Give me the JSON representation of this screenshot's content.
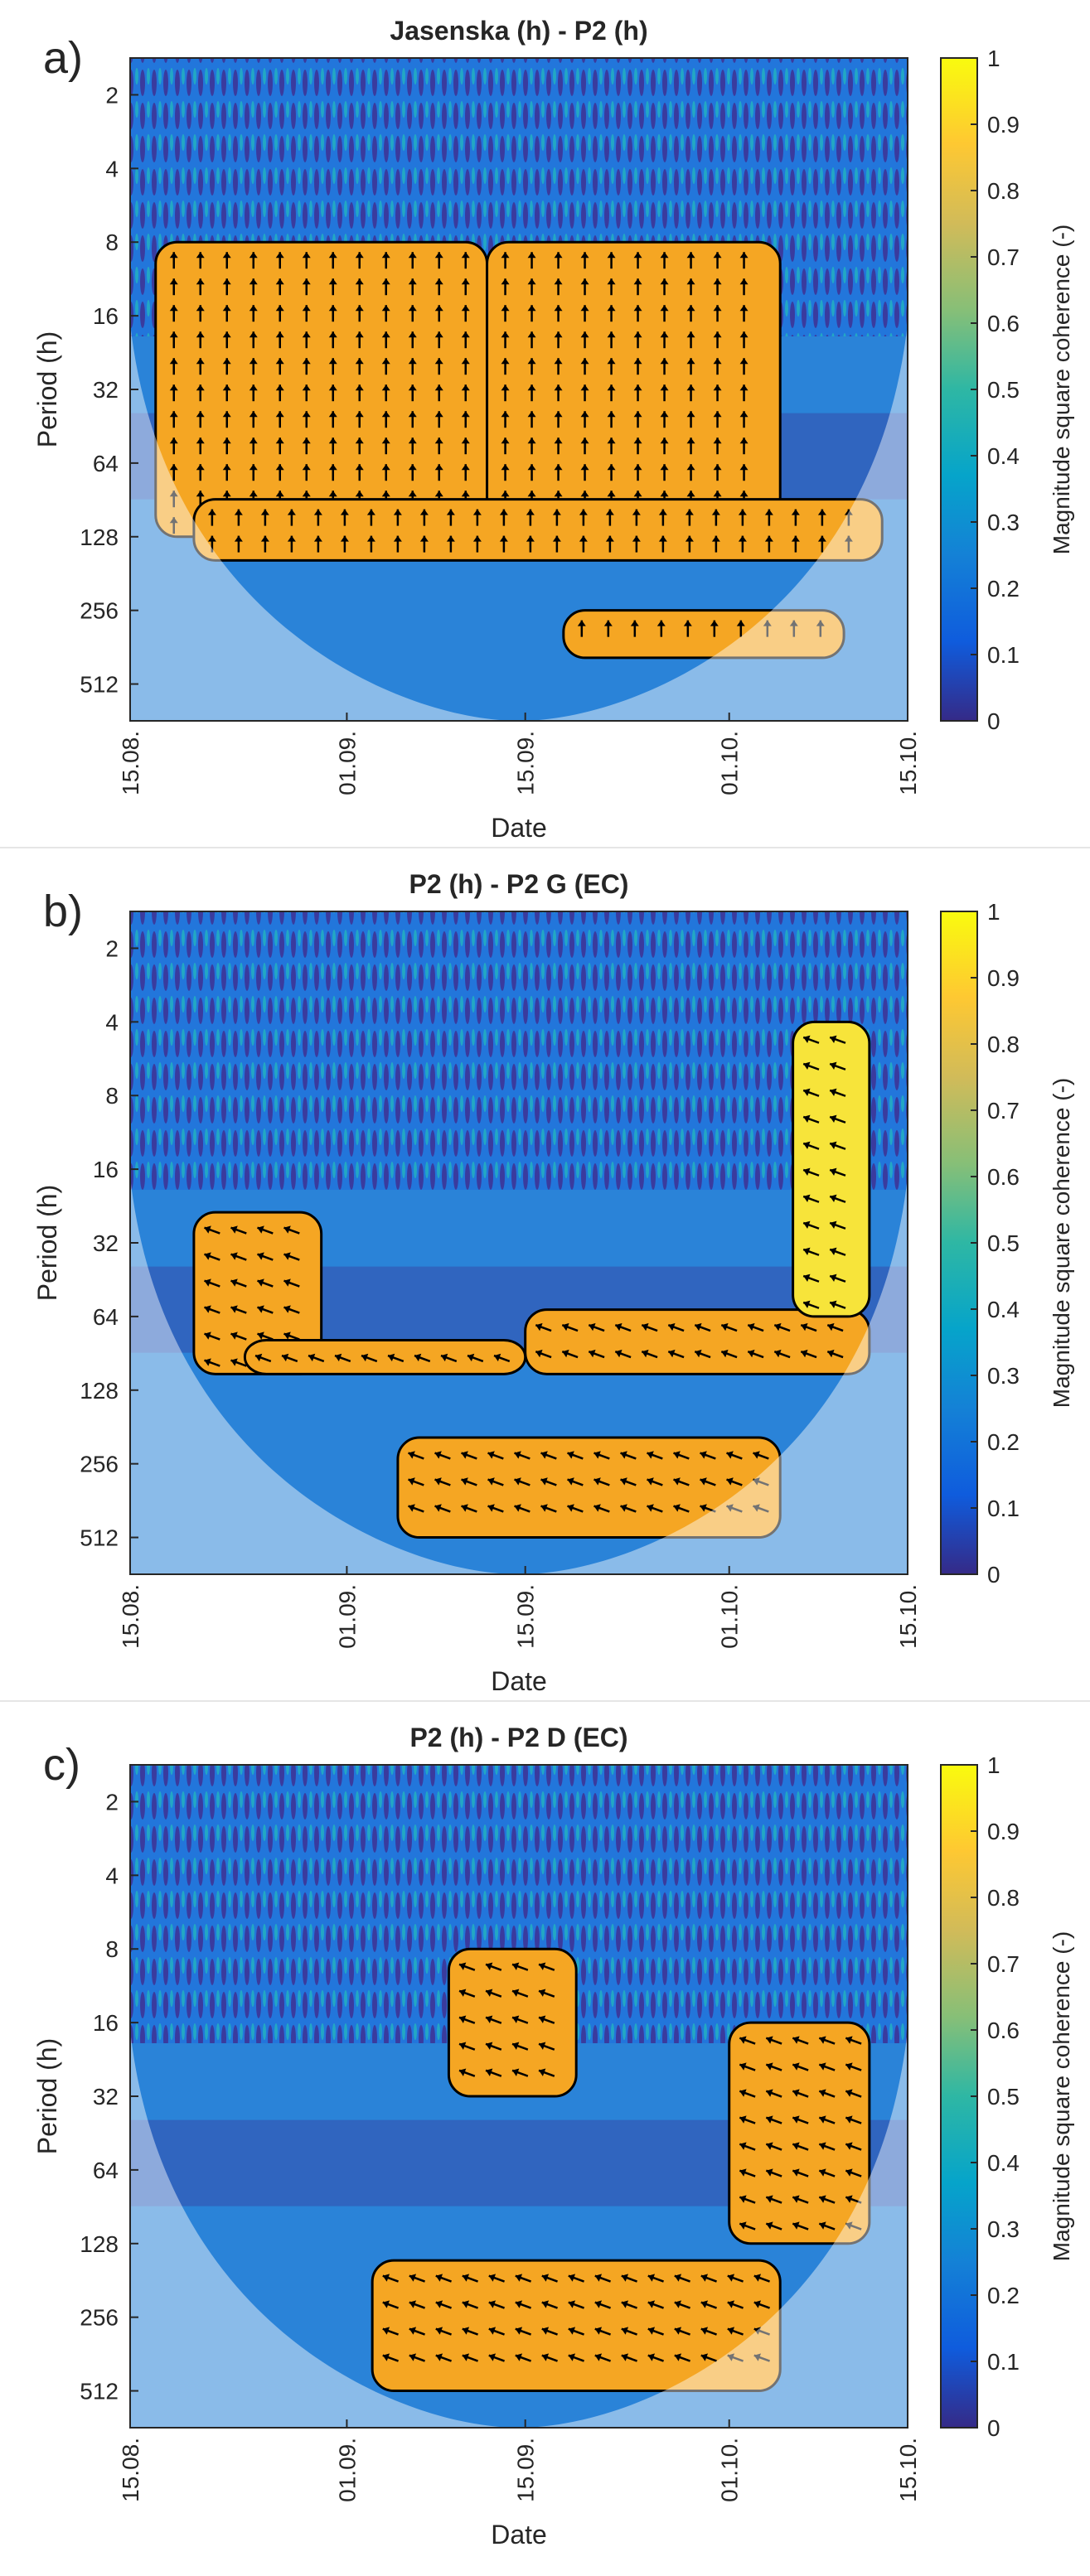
{
  "figure": {
    "common": {
      "xlabel": "Date",
      "ylabel": "Period (h)",
      "colorbar_label": "Magnitude square coherence (-)",
      "x_ticks": [
        "15.08.",
        "01.09.",
        "15.09.",
        "01.10.",
        "15.10."
      ],
      "y_ticks": [
        "2",
        "4",
        "8",
        "16",
        "32",
        "64",
        "128",
        "256",
        "512"
      ],
      "colorbar_ticks": [
        "0",
        "0.1",
        "0.2",
        "0.3",
        "0.4",
        "0.5",
        "0.6",
        "0.7",
        "0.8",
        "0.9",
        "1"
      ]
    },
    "colors": {
      "deep_blue": "#3b2f93",
      "blue": "#1f6fd6",
      "teal": "#22b3a6",
      "orange": "#f5a623",
      "yellow": "#f7e43a",
      "background_coherence": "#2a83d8"
    }
  },
  "chart_data": [
    {
      "type": "heatmap",
      "panel_label": "a)",
      "title": "Jasenska (h) - P2 (h)",
      "xlabel": "Date",
      "ylabel": "Period (h)",
      "x_dates": [
        "15.08.",
        "01.09.",
        "15.09.",
        "01.10.",
        "15.10."
      ],
      "y_periods": [
        2,
        4,
        8,
        16,
        32,
        64,
        128,
        256,
        512
      ],
      "colorbar": {
        "label": "Magnitude square coherence (-)",
        "range": [
          0,
          1
        ]
      },
      "high_coherence_regions": [
        {
          "date_range": [
            "17.08.",
            "12.09."
          ],
          "period_range": [
            8,
            128
          ],
          "coherence": 0.85
        },
        {
          "date_range": [
            "12.09.",
            "05.10."
          ],
          "period_range": [
            8,
            128
          ],
          "coherence": 0.85
        },
        {
          "date_range": [
            "20.08.",
            "13.10."
          ],
          "period_range": [
            90,
            160
          ],
          "coherence": 0.8
        },
        {
          "date_range": [
            "18.09.",
            "10.10."
          ],
          "period_range": [
            256,
            400
          ],
          "coherence": 0.75
        }
      ]
    },
    {
      "type": "heatmap",
      "panel_label": "b)",
      "title": "P2 (h) - P2 G (EC)",
      "xlabel": "Date",
      "ylabel": "Period (h)",
      "x_dates": [
        "15.08.",
        "01.09.",
        "15.09.",
        "01.10.",
        "15.10."
      ],
      "y_periods": [
        2,
        4,
        8,
        16,
        32,
        64,
        128,
        256,
        512
      ],
      "colorbar": {
        "label": "Magnitude square coherence (-)",
        "range": [
          0,
          1
        ]
      },
      "high_coherence_regions": [
        {
          "date_range": [
            "20.08.",
            "30.08."
          ],
          "period_range": [
            24,
            110
          ],
          "coherence": 0.8
        },
        {
          "date_range": [
            "24.08.",
            "15.09."
          ],
          "period_range": [
            80,
            110
          ],
          "coherence": 0.8
        },
        {
          "date_range": [
            "15.09.",
            "12.10."
          ],
          "period_range": [
            60,
            110
          ],
          "coherence": 0.85
        },
        {
          "date_range": [
            "06.10.",
            "12.10."
          ],
          "period_range": [
            4,
            64
          ],
          "coherence": 0.9
        },
        {
          "date_range": [
            "05.09.",
            "05.10."
          ],
          "period_range": [
            200,
            512
          ],
          "coherence": 0.85
        }
      ]
    },
    {
      "type": "heatmap",
      "panel_label": "c)",
      "title": "P2 (h) - P2 D (EC)",
      "xlabel": "Date",
      "ylabel": "Period (h)",
      "x_dates": [
        "15.08.",
        "01.09.",
        "15.09.",
        "01.10.",
        "15.10."
      ],
      "y_periods": [
        2,
        4,
        8,
        16,
        32,
        64,
        128,
        256,
        512
      ],
      "colorbar": {
        "label": "Magnitude square coherence (-)",
        "range": [
          0,
          1
        ]
      },
      "high_coherence_regions": [
        {
          "date_range": [
            "09.09.",
            "19.09."
          ],
          "period_range": [
            8,
            32
          ],
          "coherence": 0.85
        },
        {
          "date_range": [
            "01.10.",
            "12.10."
          ],
          "period_range": [
            16,
            128
          ],
          "coherence": 0.85
        },
        {
          "date_range": [
            "03.09.",
            "05.10."
          ],
          "period_range": [
            150,
            512
          ],
          "coherence": 0.85
        }
      ]
    }
  ]
}
